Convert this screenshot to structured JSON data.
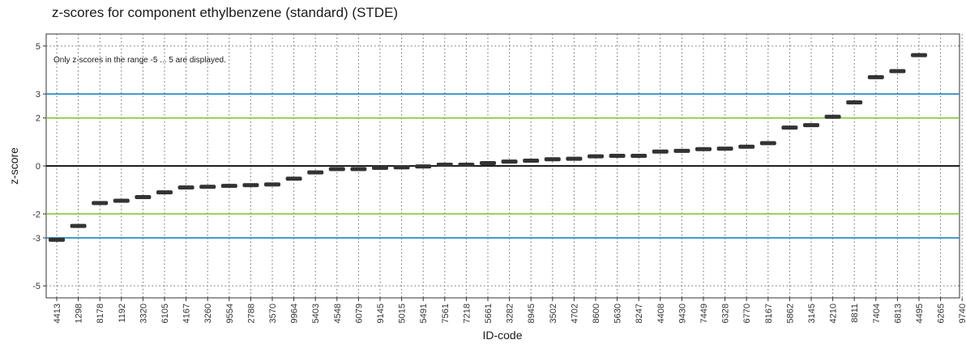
{
  "chart_data": {
    "type": "scatter",
    "title": "z-scores for component ethylbenzene (standard) (STDE)",
    "xlabel": "ID-code",
    "ylabel": "z-score",
    "note": "Only z-scores in the range -5 ... 5 are displayed.",
    "ylim": [
      -5.5,
      5.5
    ],
    "yticks": [
      -5,
      -3,
      -2,
      0,
      2,
      3,
      5
    ],
    "reference_lines": [
      {
        "y": 3,
        "color": "#2e8bc7"
      },
      {
        "y": -3,
        "color": "#2e8bc7"
      },
      {
        "y": 2,
        "color": "#8dc63f"
      },
      {
        "y": -2,
        "color": "#8dc63f"
      },
      {
        "y": 0,
        "color": "#000000"
      }
    ],
    "grid": "dotted",
    "marker_color": "#333333",
    "categories": [
      "4413",
      "1298",
      "8178",
      "1192",
      "3320",
      "6105",
      "4167",
      "3260",
      "9554",
      "2788",
      "3570",
      "9964",
      "5403",
      "4548",
      "6079",
      "9145",
      "5015",
      "5491",
      "7561",
      "7218",
      "5661",
      "3282",
      "8945",
      "3502",
      "4702",
      "8600",
      "5630",
      "8247",
      "4408",
      "9430",
      "7449",
      "6328",
      "6770",
      "8167",
      "5862",
      "3145",
      "4210",
      "8811",
      "7404",
      "6813",
      "4495",
      "6265",
      "9740"
    ],
    "values": [
      -3.08,
      -2.5,
      -1.55,
      -1.45,
      -1.3,
      -1.1,
      -0.9,
      -0.87,
      -0.83,
      -0.8,
      -0.77,
      -0.53,
      -0.27,
      -0.13,
      -0.13,
      -0.08,
      -0.06,
      -0.02,
      0.05,
      0.05,
      0.12,
      0.18,
      0.22,
      0.28,
      0.3,
      0.4,
      0.42,
      0.42,
      0.6,
      0.63,
      0.7,
      0.72,
      0.8,
      0.95,
      1.6,
      1.7,
      2.05,
      2.65,
      3.7,
      3.95,
      4.62,
      null,
      null
    ]
  }
}
